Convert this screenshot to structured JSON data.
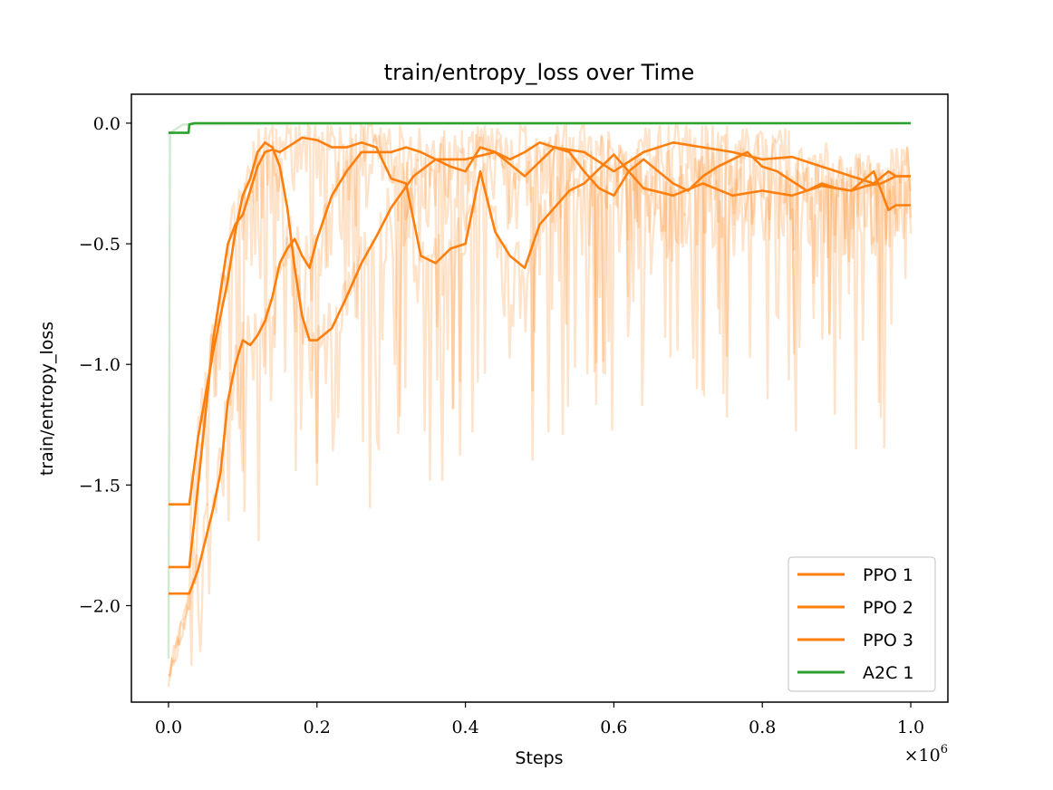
{
  "chart_data": {
    "type": "line",
    "title": "train/entropy_loss over Time",
    "xlabel": "Steps",
    "ylabel": "train/entropy_loss",
    "x_multiplier": "×10",
    "x_multiplier_exp": "6",
    "xlim": [
      -0.05,
      1.05
    ],
    "ylim": [
      -2.4,
      0.12
    ],
    "x_ticks": [
      0.0,
      0.2,
      0.4,
      0.6,
      0.8,
      1.0
    ],
    "x_tick_labels": [
      "0.0",
      "0.2",
      "0.4",
      "0.6",
      "0.8",
      "1.0"
    ],
    "y_ticks": [
      0.0,
      -0.5,
      -1.0,
      -1.5,
      -2.0
    ],
    "y_tick_labels": [
      "0.0",
      "−0.5",
      "−1.0",
      "−1.5",
      "−2.0"
    ],
    "grid": false,
    "legend_position": "lower-right",
    "x_scale_note": "x values in units of 1e6 steps",
    "series": [
      {
        "name": "PPO 1",
        "color": "#ff7f0e",
        "x": [
          0.0,
          0.01,
          0.028,
          0.04,
          0.06,
          0.08,
          0.09,
          0.1,
          0.11,
          0.12,
          0.13,
          0.14,
          0.15,
          0.16,
          0.17,
          0.18,
          0.19,
          0.2,
          0.22,
          0.24,
          0.26,
          0.28,
          0.3,
          0.33,
          0.36,
          0.4,
          0.44,
          0.48,
          0.52,
          0.56,
          0.6,
          0.64,
          0.68,
          0.72,
          0.76,
          0.8,
          0.84,
          0.88,
          0.92,
          0.95,
          0.97,
          0.98,
          1.0
        ],
        "y": [
          -1.58,
          -1.58,
          -1.58,
          -1.3,
          -0.95,
          -0.65,
          -0.45,
          -0.3,
          -0.23,
          -0.12,
          -0.08,
          -0.1,
          -0.18,
          -0.35,
          -0.6,
          -0.8,
          -0.9,
          -0.9,
          -0.85,
          -0.72,
          -0.58,
          -0.47,
          -0.35,
          -0.22,
          -0.15,
          -0.15,
          -0.12,
          -0.22,
          -0.1,
          -0.12,
          -0.2,
          -0.12,
          -0.08,
          -0.1,
          -0.12,
          -0.15,
          -0.14,
          -0.18,
          -0.22,
          -0.25,
          -0.2,
          -0.22,
          -0.22
        ]
      },
      {
        "name": "PPO 2",
        "color": "#ff7f0e",
        "x": [
          0.0,
          0.01,
          0.028,
          0.04,
          0.05,
          0.06,
          0.07,
          0.08,
          0.09,
          0.1,
          0.11,
          0.12,
          0.13,
          0.14,
          0.15,
          0.16,
          0.17,
          0.18,
          0.2,
          0.22,
          0.24,
          0.26,
          0.28,
          0.3,
          0.32,
          0.34,
          0.36,
          0.38,
          0.4,
          0.42,
          0.44,
          0.46,
          0.48,
          0.5,
          0.52,
          0.54,
          0.56,
          0.6,
          0.64,
          0.68,
          0.72,
          0.76,
          0.8,
          0.84,
          0.88,
          0.92,
          0.95,
          0.97,
          0.98,
          1.0
        ],
        "y": [
          -1.84,
          -1.84,
          -1.84,
          -1.5,
          -1.2,
          -0.9,
          -0.7,
          -0.5,
          -0.42,
          -0.38,
          -0.28,
          -0.18,
          -0.12,
          -0.11,
          -0.12,
          -0.1,
          -0.08,
          -0.06,
          -0.07,
          -0.1,
          -0.1,
          -0.08,
          -0.1,
          -0.23,
          -0.25,
          -0.55,
          -0.58,
          -0.52,
          -0.5,
          -0.2,
          -0.45,
          -0.55,
          -0.6,
          -0.42,
          -0.35,
          -0.28,
          -0.25,
          -0.13,
          -0.27,
          -0.3,
          -0.25,
          -0.3,
          -0.28,
          -0.3,
          -0.26,
          -0.28,
          -0.2,
          -0.36,
          -0.34,
          -0.34
        ]
      },
      {
        "name": "PPO 3",
        "color": "#ff7f0e",
        "x": [
          0.0,
          0.01,
          0.028,
          0.04,
          0.06,
          0.07,
          0.08,
          0.09,
          0.1,
          0.11,
          0.12,
          0.13,
          0.14,
          0.15,
          0.16,
          0.17,
          0.18,
          0.19,
          0.2,
          0.22,
          0.24,
          0.26,
          0.28,
          0.3,
          0.32,
          0.34,
          0.36,
          0.38,
          0.4,
          0.42,
          0.44,
          0.46,
          0.48,
          0.5,
          0.52,
          0.54,
          0.56,
          0.58,
          0.6,
          0.62,
          0.64,
          0.66,
          0.68,
          0.7,
          0.72,
          0.74,
          0.76,
          0.78,
          0.8,
          0.82,
          0.84,
          0.86,
          0.88,
          0.9,
          0.92,
          0.94,
          0.96,
          0.98,
          1.0
        ],
        "y": [
          -1.95,
          -1.95,
          -1.95,
          -1.85,
          -1.6,
          -1.45,
          -1.15,
          -1.0,
          -0.9,
          -0.92,
          -0.88,
          -0.82,
          -0.72,
          -0.58,
          -0.52,
          -0.48,
          -0.55,
          -0.6,
          -0.48,
          -0.3,
          -0.2,
          -0.12,
          -0.12,
          -0.12,
          -0.1,
          -0.12,
          -0.15,
          -0.18,
          -0.2,
          -0.1,
          -0.12,
          -0.15,
          -0.12,
          -0.08,
          -0.1,
          -0.12,
          -0.2,
          -0.27,
          -0.3,
          -0.2,
          -0.15,
          -0.2,
          -0.25,
          -0.28,
          -0.22,
          -0.18,
          -0.15,
          -0.12,
          -0.18,
          -0.2,
          -0.24,
          -0.28,
          -0.25,
          -0.27,
          -0.28,
          -0.26,
          -0.25,
          -0.22,
          -0.22
        ]
      },
      {
        "name": "A2C 1",
        "color": "#2ca02c",
        "x": [
          0.0,
          0.027,
          0.028,
          0.035,
          0.05,
          0.1,
          0.3,
          0.5,
          0.7,
          0.9,
          1.0
        ],
        "y": [
          -0.04,
          -0.04,
          -0.005,
          0.0,
          0.0,
          0.0,
          0.0,
          0.0,
          0.0,
          0.0,
          0.0
        ]
      }
    ]
  }
}
